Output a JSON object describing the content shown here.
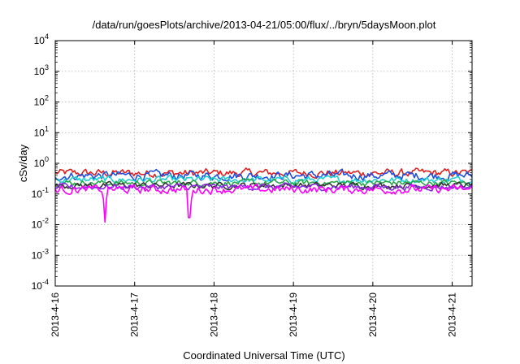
{
  "chart_data": {
    "type": "line",
    "title": "/data/run/goesPlots/archive/2013-04-21/05:00/flux/../bryn/5daysMoon.plot",
    "xlabel": "Coordinated Universal Time (UTC)",
    "ylabel": "cSv/day",
    "x_ticks": [
      "2013-4-16",
      "2013-4-17",
      "2013-4-18",
      "2013-4-19",
      "2013-4-20",
      "2013-4-21"
    ],
    "x_range": [
      "2013-04-16 00:00",
      "2013-04-21 06:00"
    ],
    "y_scale": "log",
    "ylim": [
      0.0001,
      10000
    ],
    "y_ticks": [
      {
        "mantissa": "10",
        "exp": "-4"
      },
      {
        "mantissa": "10",
        "exp": "-3"
      },
      {
        "mantissa": "10",
        "exp": "-2"
      },
      {
        "mantissa": "10",
        "exp": "-1"
      },
      {
        "mantissa": "10",
        "exp": "0"
      },
      {
        "mantissa": "10",
        "exp": "1"
      },
      {
        "mantissa": "10",
        "exp": "2"
      },
      {
        "mantissa": "10",
        "exp": "3"
      },
      {
        "mantissa": "10",
        "exp": "4"
      }
    ],
    "grid": true,
    "legend": "none",
    "series": [
      {
        "color": "#e02020",
        "base": 0.48,
        "jitter": 0.12
      },
      {
        "color": "#1f4fe0",
        "base": 0.4,
        "jitter": 0.13
      },
      {
        "color": "#20d0d0",
        "base": 0.29,
        "jitter": 0.1
      },
      {
        "color": "#2aa84a",
        "base": 0.23,
        "jitter": 0.09
      },
      {
        "color": "#333333",
        "base": 0.19,
        "jitter": 0.09
      },
      {
        "color": "#8a2be2",
        "base": 0.17,
        "jitter": 0.09
      },
      {
        "color": "#ff00ff",
        "base": 0.14,
        "jitter": 0.12,
        "dips": [
          {
            "x": "2013-04-16 15:00",
            "y": 0.012
          },
          {
            "x": "2013-04-17 16:30",
            "y": 0.017
          }
        ]
      }
    ]
  }
}
